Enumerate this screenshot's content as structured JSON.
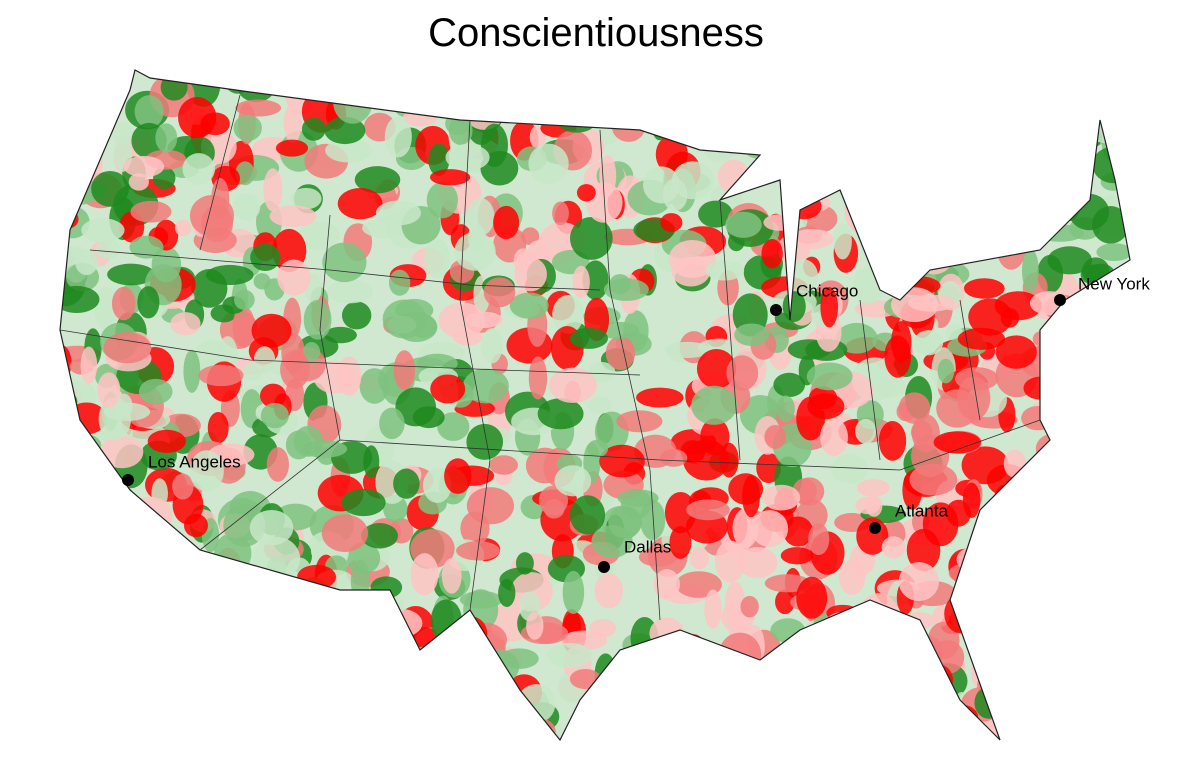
{
  "title": "Conscientiousness",
  "cities": [
    {
      "label": "Los Angeles"
    },
    {
      "label": "Dallas"
    },
    {
      "label": "Chicago"
    },
    {
      "label": "New York"
    },
    {
      "label": "Atlanta"
    }
  ]
}
